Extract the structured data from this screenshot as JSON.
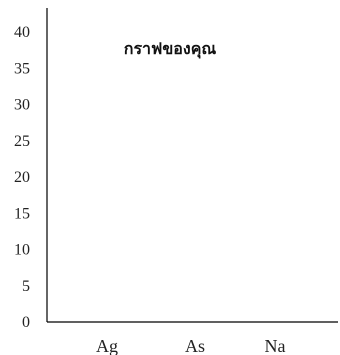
{
  "chart_data": {
    "type": "bar",
    "title": "กราฟของคุณ",
    "categories": [
      "Ag",
      "As",
      "Na"
    ],
    "series": [
      {
        "values": [
          0,
          0,
          0
        ]
      }
    ],
    "ylim": [
      0,
      40
    ],
    "yticks": [
      0,
      5,
      10,
      15,
      20,
      25,
      30,
      35,
      40
    ],
    "xlabel": "",
    "ylabel": "",
    "grid": false,
    "legend": "none"
  },
  "colors": {
    "axis": "#000000",
    "text": "#222222",
    "bar": "#4a7ebb"
  }
}
